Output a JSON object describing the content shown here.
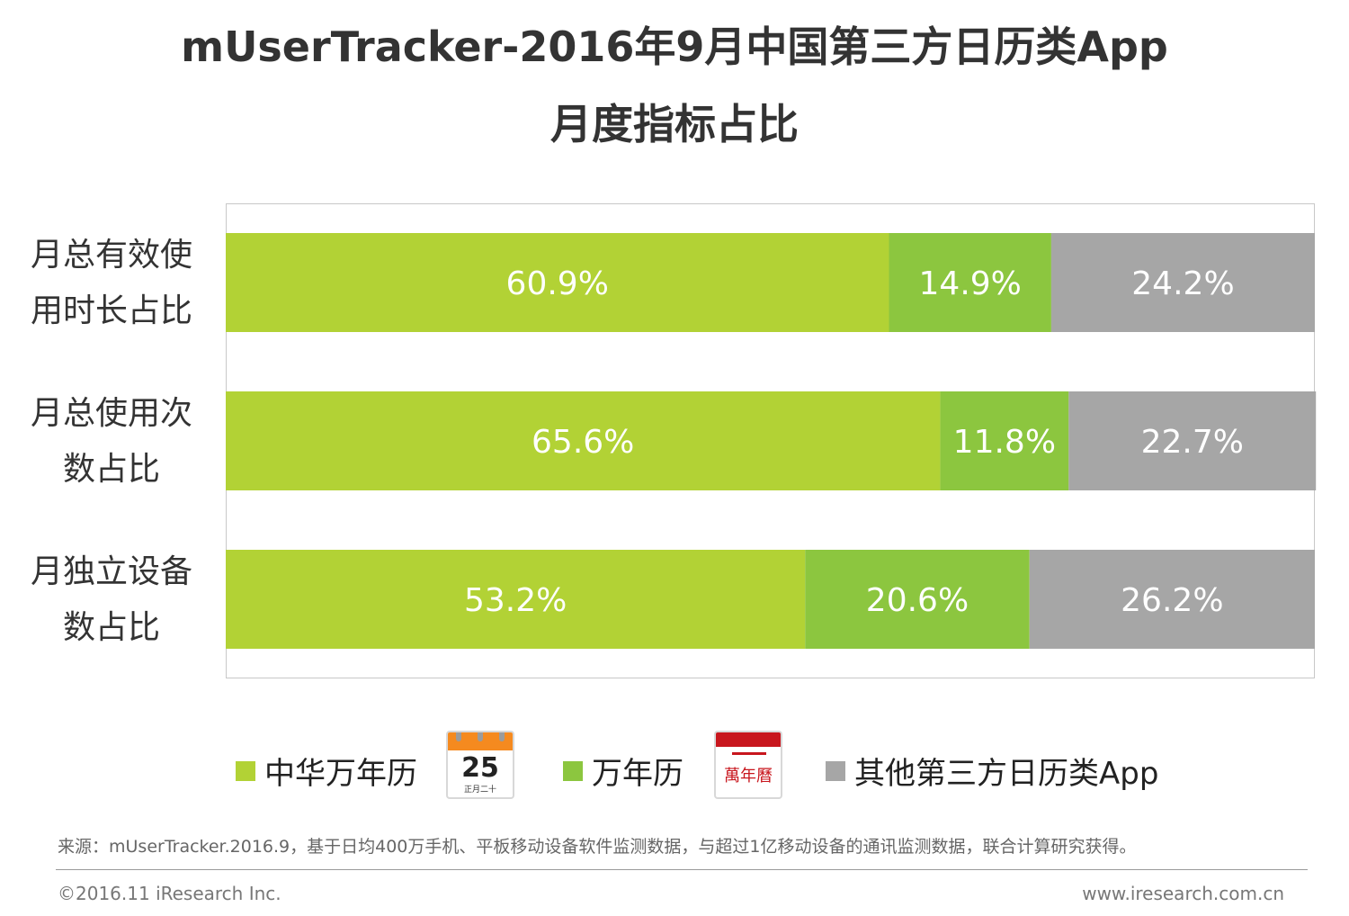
{
  "chart_data": {
    "type": "bar",
    "orientation": "horizontal-stacked-100",
    "title": "mUserTracker-2016年9月中国第三方日历类App",
    "subtitle": "月度指标占比",
    "categories": [
      [
        "月总有效使",
        "用时长占比"
      ],
      [
        "月总使用次",
        "数占比"
      ],
      [
        "月独立设备",
        "数占比"
      ]
    ],
    "series": [
      {
        "name": "中华万年历",
        "color": "#b2d235",
        "values": [
          60.9,
          65.6,
          53.2
        ],
        "labels": [
          "60.9%",
          "65.6%",
          "53.2%"
        ]
      },
      {
        "name": "万年历",
        "color": "#8cc63f",
        "values": [
          14.9,
          11.8,
          20.6
        ],
        "labels": [
          "14.9%",
          "11.8%",
          "20.6%"
        ]
      },
      {
        "name": "其他第三方日历类App",
        "color": "#a6a6a6",
        "values": [
          24.2,
          22.7,
          26.2
        ],
        "labels": [
          "24.2%",
          "22.7%",
          "26.2%"
        ]
      }
    ],
    "xlim": [
      0,
      100
    ],
    "grid": false,
    "legend": "bottom"
  },
  "legend_icons": {
    "icon1": {
      "name": "zhonghua-calendar-icon",
      "number": "25",
      "sub": "正月二十"
    },
    "icon2": {
      "name": "wannianli-icon",
      "text": "萬年曆"
    }
  },
  "footer": {
    "source": "来源：mUserTracker.2016.9，基于日均400万手机、平板移动设备软件监测数据，与超过1亿移动设备的通讯监测数据，联合计算研究获得。",
    "copyright": "©2016.11  iResearch Inc.",
    "url": "www.iresearch.com.cn"
  }
}
